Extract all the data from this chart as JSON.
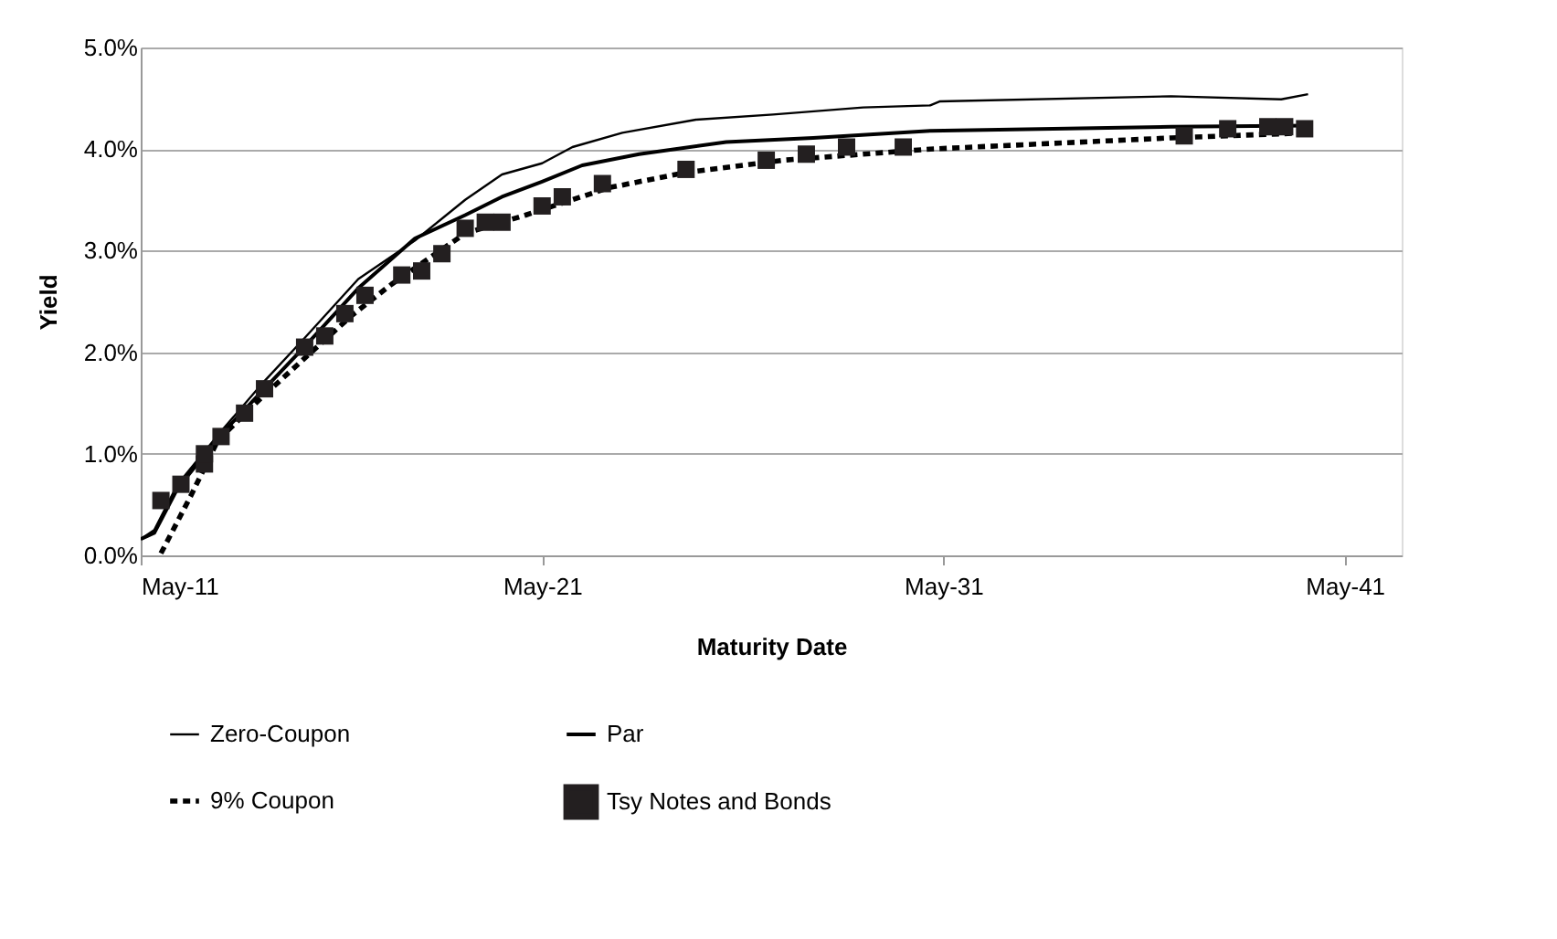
{
  "chart_data": {
    "type": "line",
    "xlabel": "Maturity Date",
    "ylabel": "Yield",
    "xlim": [
      "2011-05",
      "2042-10"
    ],
    "xticks": [
      {
        "value": "2011-05",
        "label": "May-11"
      },
      {
        "value": "2021-05",
        "label": "May-21"
      },
      {
        "value": "2031-05",
        "label": "May-31"
      },
      {
        "value": "2041-05",
        "label": "May-41"
      }
    ],
    "ylim": [
      0,
      5
    ],
    "yticks": [
      {
        "value": 0,
        "label": "0.0%"
      },
      {
        "value": 1,
        "label": "1.0%"
      },
      {
        "value": 2,
        "label": "2.0%"
      },
      {
        "value": 3,
        "label": "3.0%"
      },
      {
        "value": 4,
        "label": "4.0%"
      },
      {
        "value": 5,
        "label": "5.0%"
      }
    ],
    "grid": "y",
    "legend": "bottom",
    "series": [
      {
        "name": "Zero-Coupon",
        "color": "#000000",
        "line_style": "solid",
        "marker": "none",
        "x": [
          "2011-05",
          "2011-09",
          "2012-04",
          "2013-05",
          "2014-05",
          "2015-06",
          "2016-10",
          "2018-03",
          "2019-06",
          "2020-05",
          "2021-05",
          "2022-02",
          "2023-05",
          "2025-03",
          "2027-02",
          "2029-05",
          "2031-01",
          "2031-04",
          "2037-01",
          "2039-10",
          "2040-06"
        ],
        "values": [
          0.16,
          0.25,
          0.7,
          1.22,
          1.68,
          2.14,
          2.72,
          3.1,
          3.5,
          3.75,
          3.86,
          4.02,
          4.16,
          4.29,
          4.34,
          4.41,
          4.43,
          4.47,
          4.52,
          4.49,
          4.54
        ]
      },
      {
        "name": "Par",
        "color": "#000000",
        "line_style": "solid",
        "marker": "none",
        "x": [
          "2011-05",
          "2011-09",
          "2012-04",
          "2013-05",
          "2015-07",
          "2016-10",
          "2018-03",
          "2019-06",
          "2020-05",
          "2021-05",
          "2022-05",
          "2023-10",
          "2025-12",
          "2028-02",
          "2031-01",
          "2037-01",
          "2040-06"
        ],
        "values": [
          0.16,
          0.22,
          0.66,
          1.19,
          2.09,
          2.63,
          3.12,
          3.35,
          3.53,
          3.68,
          3.84,
          3.95,
          4.07,
          4.11,
          4.18,
          4.22,
          4.23
        ]
      },
      {
        "name": "9% Coupon",
        "color": "#000000",
        "line_style": "dashed",
        "marker": "none",
        "x": [
          "2011-11",
          "2012-08",
          "2013-04",
          "2014-05",
          "2015-05",
          "2016-08",
          "2017-08",
          "2019-06",
          "2020-12",
          "2023-01",
          "2024-12",
          "2027-05",
          "2031-01",
          "2037-01",
          "2040-06"
        ],
        "values": [
          0.02,
          0.59,
          1.13,
          1.55,
          1.91,
          2.36,
          2.67,
          3.17,
          3.35,
          3.62,
          3.77,
          3.89,
          4.0,
          4.11,
          4.16
        ]
      },
      {
        "name": "Tsy Notes and Bonds",
        "color": "#231f20",
        "type": "scatter",
        "marker": "square",
        "x": [
          "2011-11",
          "2012-05",
          "2012-12",
          "2012-12",
          "2013-05",
          "2013-12",
          "2014-06",
          "2015-06",
          "2015-12",
          "2016-06",
          "2016-12",
          "2017-11",
          "2018-05",
          "2018-11",
          "2019-06",
          "2019-12",
          "2020-05",
          "2021-05",
          "2021-11",
          "2022-11",
          "2024-12",
          "2026-12",
          "2027-12",
          "2028-12",
          "2030-05",
          "2037-05",
          "2038-06",
          "2039-06",
          "2039-11",
          "2040-05"
        ],
        "values": [
          0.54,
          0.7,
          0.9,
          1.0,
          1.17,
          1.4,
          1.64,
          2.05,
          2.16,
          2.38,
          2.56,
          2.76,
          2.8,
          2.97,
          3.22,
          3.28,
          3.28,
          3.44,
          3.53,
          3.66,
          3.8,
          3.89,
          3.95,
          4.02,
          4.02,
          4.13,
          4.2,
          4.22,
          4.22,
          4.2
        ]
      }
    ]
  }
}
